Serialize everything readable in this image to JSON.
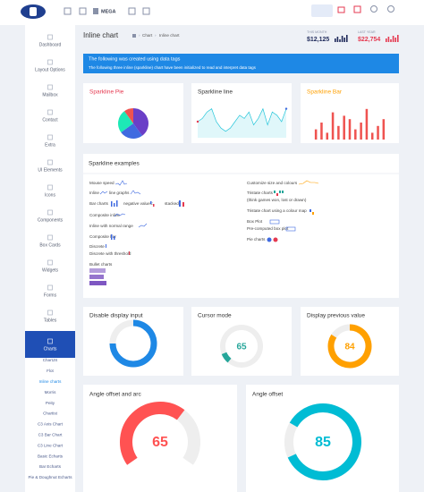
{
  "topbar": {
    "menu": "MEGA"
  },
  "header": {
    "title": "Inline chart",
    "breadcrumb": [
      "Chart",
      "Inline chart"
    ],
    "stats": [
      {
        "label": "THIS MONTH",
        "value": "$12,125",
        "color": "#1f2a5a"
      },
      {
        "label": "LAST YEAR",
        "value": "$22,754",
        "color": "#e53950"
      }
    ]
  },
  "sidebar": {
    "items": [
      "Dashboard",
      "Layout Options",
      "Mailbox",
      "Contact",
      "Extra",
      "UI Elements",
      "Icons",
      "Components",
      "Box Cards",
      "Widgets",
      "Forms",
      "Tables",
      "Charts"
    ],
    "active_index": 12,
    "submenu": [
      "ChartJS",
      "Flot",
      "Inline charts",
      "Morris",
      "Peity",
      "Chartist",
      "C3 Axis Chart",
      "C3 Bar Chart",
      "C3 Line Chart",
      "Basic Echarts",
      "Bar Echarts",
      "Pie & Doughnut Echarts"
    ],
    "submenu_active_index": 2
  },
  "alert": {
    "title": "The following was created using data tags",
    "text": "The following three inline (sparkline) chart have been initialized to read and interpret data tags"
  },
  "sparklines": [
    {
      "title": "Sparkline Pie",
      "type": "pie",
      "title_color": "#e53950",
      "values": [
        40,
        25,
        25,
        10
      ],
      "colors": [
        "#6a3fc7",
        "#3f6ae0",
        "#1de9b6",
        "#ef5350"
      ]
    },
    {
      "title": "Sparkline line",
      "type": "line",
      "title_color": "#333333",
      "color": "#26c6da",
      "values": [
        5,
        6,
        8,
        9,
        5,
        3,
        2,
        3,
        5,
        7,
        6,
        8,
        4,
        6,
        9,
        4,
        8,
        7,
        5,
        9
      ],
      "ylim": [
        0,
        10
      ]
    },
    {
      "title": "Sparkline Bar",
      "type": "bar",
      "title_color": "#ffa000",
      "color": "#ef5350",
      "values": [
        3,
        5,
        2,
        8,
        4,
        7,
        6,
        3,
        5,
        9,
        2,
        4,
        6
      ],
      "ylim": [
        0,
        10
      ]
    }
  ],
  "examples": {
    "title": "Sparkline examples",
    "left": [
      "Mouse speed",
      "Inline",
      "line graphs",
      "Bar charts",
      "negative values:",
      "stacked:",
      "Composite inline",
      "Inline with normal range",
      "Composite bar",
      "Discrete",
      "Discrete with threshold",
      "Bullet charts"
    ],
    "right": [
      "Customize size and colours",
      "Tristate charts",
      "(think games won, lost or drawn)",
      "Tristate chart using a colour map",
      "Box Plot",
      "Pre-computed box plot",
      "Pie charts"
    ]
  },
  "knobs": [
    {
      "title": "Disable display input",
      "value": 75,
      "max": 100,
      "mode": "full",
      "color": "#1e88e5",
      "show_value": false
    },
    {
      "title": "Cursor mode",
      "value": 65,
      "max": 100,
      "mode": "cursor",
      "color": "#26a69a",
      "show_value": true
    },
    {
      "title": "Display previous value",
      "value": 84,
      "max": 100,
      "mode": "full",
      "color": "#ffa000",
      "show_value": true
    },
    {
      "title": "Angle offset and arc",
      "value": 65,
      "max": 100,
      "mode": "arc",
      "angle_offset": -125,
      "angle_arc": 250,
      "color": "#ff5252",
      "show_value": true
    },
    {
      "title": "Angle offset",
      "value": 85,
      "max": 100,
      "mode": "full",
      "angle_offset": -60,
      "color": "#00bcd4",
      "show_value": true
    }
  ]
}
